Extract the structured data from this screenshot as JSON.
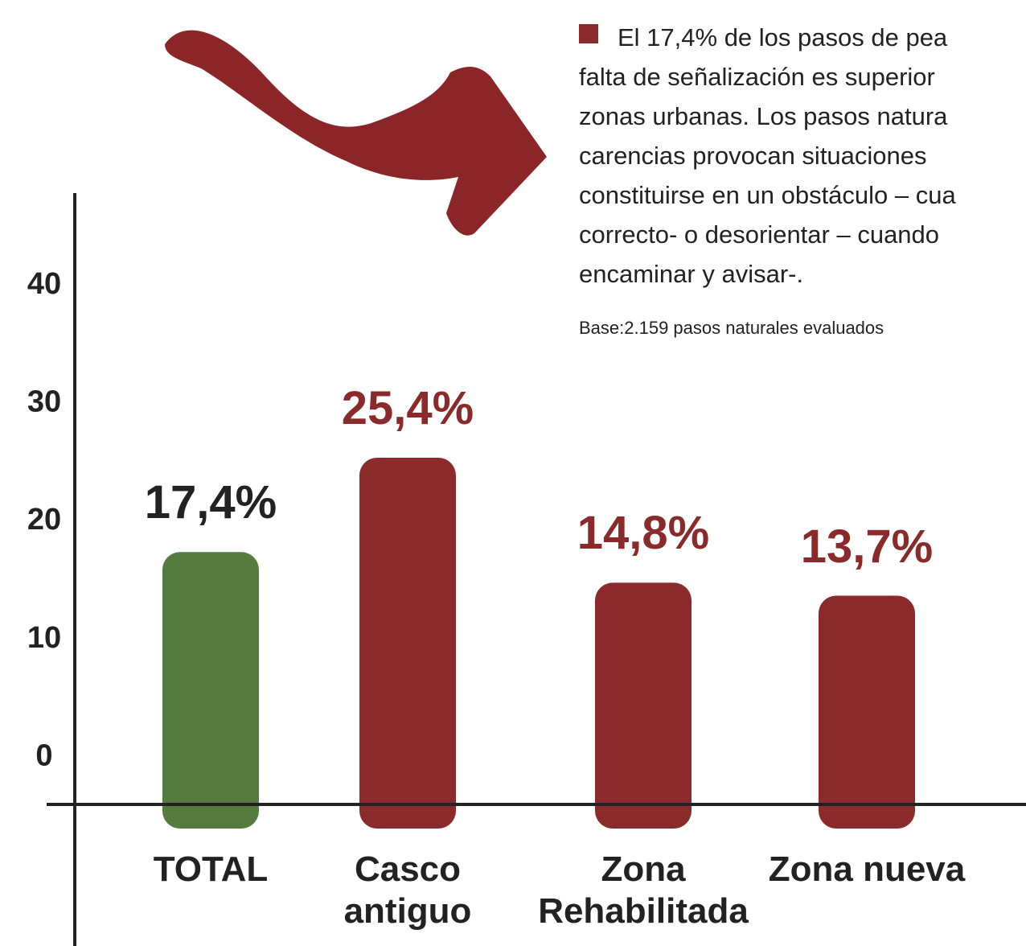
{
  "chart_data": {
    "type": "bar",
    "categories": [
      "TOTAL",
      "Casco antiguo",
      "Zona Rehabilitada",
      "Zona nueva"
    ],
    "values": [
      17.4,
      25.4,
      14.8,
      13.7
    ],
    "value_labels": [
      "17,4%",
      "25,4%",
      "14,8%",
      "13,7%"
    ],
    "colors": [
      "#557b3f",
      "#8b2a2a",
      "#8b2a2a",
      "#8b2a2a"
    ],
    "label_colors": [
      "#222222",
      "#8b2a2a",
      "#8b2a2a",
      "#8b2a2a"
    ],
    "ylim": [
      -4,
      46
    ],
    "yticks": [
      0,
      10,
      20,
      30,
      40
    ],
    "annotation_lines": [
      "El 17,4% de los pasos de pea",
      "falta de señalización es superior",
      "zonas urbanas. Los pasos natura",
      "carencias provocan situaciones",
      "constituirse en un obstáculo – cua",
      "correcto- o desorientar – cuando",
      "encaminar y avisar-."
    ],
    "base_note": "Base:2.159 pasos naturales evaluados"
  }
}
